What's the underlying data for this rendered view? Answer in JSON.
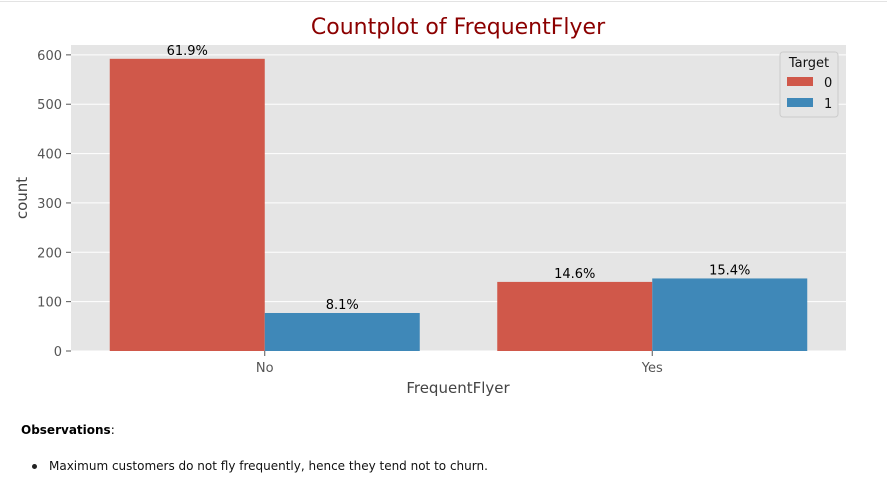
{
  "chart_data": {
    "type": "bar",
    "title": "Countplot of FrequentFlyer",
    "xlabel": "FrequentFlyer",
    "ylabel": "count",
    "categories": [
      "No",
      "Yes"
    ],
    "series": [
      {
        "name": "0",
        "values": [
          592,
          140
        ],
        "color": "#d0584a",
        "labels": [
          "61.9%",
          "14.6%"
        ]
      },
      {
        "name": "1",
        "values": [
          77,
          147
        ],
        "color": "#3f88b8",
        "labels": [
          "8.1%",
          "15.4%"
        ]
      }
    ],
    "ylim": [
      0,
      620
    ],
    "yticks": [
      0,
      100,
      200,
      300,
      400,
      500,
      600
    ],
    "legend": {
      "title": "Target",
      "placement": "top-right"
    },
    "grid": true,
    "colors": {
      "background": "#e5e5e5",
      "grid": "#ffffff",
      "title": "#8b0000"
    }
  },
  "observations": {
    "heading": "Observations",
    "suffix": ":",
    "items": [
      "Maximum customers do not fly frequently, hence they tend not to churn."
    ]
  }
}
